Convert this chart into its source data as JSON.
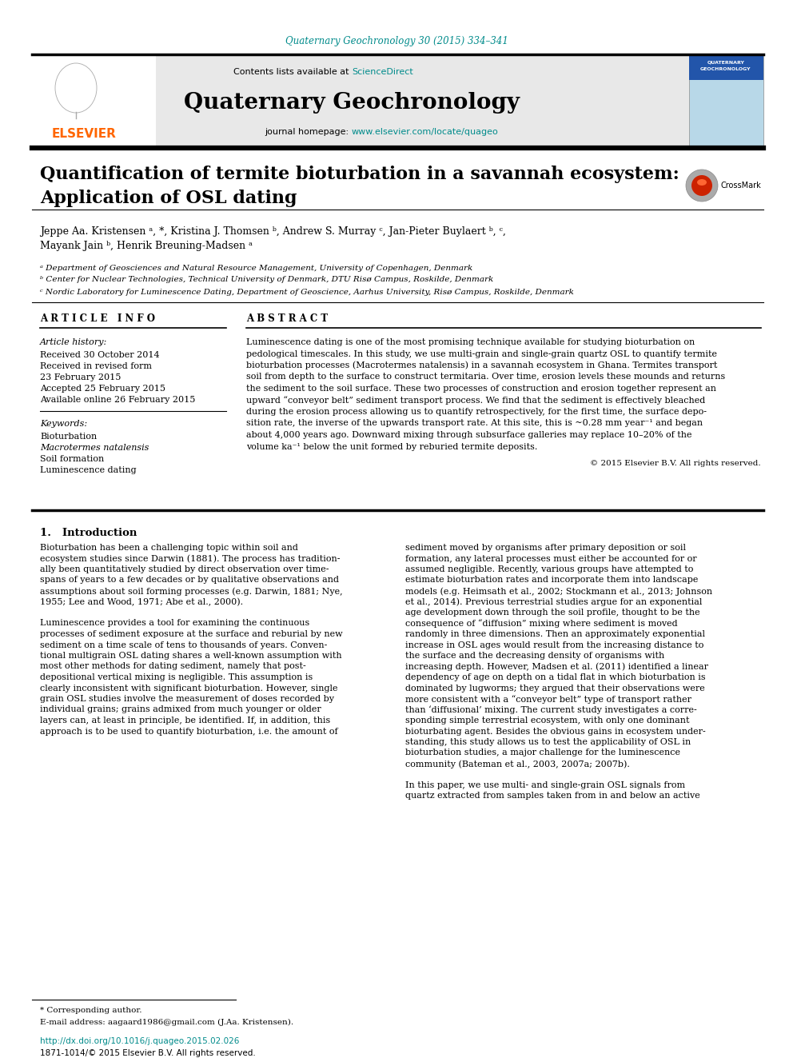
{
  "journal_citation": "Quaternary Geochronology 30 (2015) 334–341",
  "journal_name": "Quaternary Geochronology",
  "contents_text": "Contents lists available at ",
  "sciencedirect": "ScienceDirect",
  "journal_homepage_text": "journal homepage: ",
  "journal_url": "www.elsevier.com/locate/quageo",
  "title_line1": "Quantification of termite bioturbation in a savannah ecosystem:",
  "title_line2": "Application of OSL dating",
  "authors": "Jeppe Aa. Kristensen ᵃ, *, Kristina J. Thomsen ᵇ, Andrew S. Murray ᶜ, Jan-Pieter Buylaert ᵇ, ᶜ,",
  "authors2": "Mayank Jain ᵇ, Henrik Breuning-Madsen ᵃ",
  "affil_a": "ᵃ Department of Geosciences and Natural Resource Management, University of Copenhagen, Denmark",
  "affil_b": "ᵇ Center for Nuclear Technologies, Technical University of Denmark, DTU Risø Campus, Roskilde, Denmark",
  "affil_c": "ᶜ Nordic Laboratory for Luminescence Dating, Department of Geoscience, Aarhus University, Risø Campus, Roskilde, Denmark",
  "article_info_title": "A R T I C L E   I N F O",
  "abstract_title": "A B S T R A C T",
  "article_history_label": "Article history:",
  "received1": "Received 30 October 2014",
  "received2": "Received in revised form",
  "received2b": "23 February 2015",
  "accepted": "Accepted 25 February 2015",
  "available": "Available online 26 February 2015",
  "keywords_label": "Keywords:",
  "keyword1": "Bioturbation",
  "keyword2": "Macrotermes natalensis",
  "keyword3": "Soil formation",
  "keyword4": "Luminescence dating",
  "copyright": "© 2015 Elsevier B.V. All rights reserved.",
  "intro_heading": "1.   Introduction",
  "footnote_star": "* Corresponding author.",
  "footnote_email": "E-mail address: aagaard1986@gmail.com (J.Aa. Kristensen).",
  "doi_text": "http://dx.doi.org/10.1016/j.quageo.2015.02.026",
  "issn_text": "1871-1014/© 2015 Elsevier B.V. All rights reserved.",
  "link_color": "#008B8B",
  "citation_color": "#008B8B",
  "header_bg": "#e8e8e8",
  "elsevier_color": "#FF6600",
  "abstract_lines": [
    "Luminescence dating is one of the most promising technique available for studying bioturbation on",
    "pedological timescales. In this study, we use multi-grain and single-grain quartz OSL to quantify termite",
    "bioturbation processes (Macrotermes natalensis) in a savannah ecosystem in Ghana. Termites transport",
    "soil from depth to the surface to construct termitaria. Over time, erosion levels these mounds and returns",
    "the sediment to the soil surface. These two processes of construction and erosion together represent an",
    "upward “conveyor belt” sediment transport process. We find that the sediment is effectively bleached",
    "during the erosion process allowing us to quantify retrospectively, for the first time, the surface depo-",
    "sition rate, the inverse of the upwards transport rate. At this site, this is ~0.28 mm year⁻¹ and began",
    "about 4,000 years ago. Downward mixing through subsurface galleries may replace 10–20% of the",
    "volume ka⁻¹ below the unit formed by reburied termite deposits."
  ],
  "intro1_lines": [
    "Bioturbation has been a challenging topic within soil and",
    "ecosystem studies since Darwin (1881). The process has tradition-",
    "ally been quantitatively studied by direct observation over time-",
    "spans of years to a few decades or by qualitative observations and",
    "assumptions about soil forming processes (e.g. Darwin, 1881; Nye,",
    "1955; Lee and Wood, 1971; Abe et al., 2000).",
    "",
    "Luminescence provides a tool for examining the continuous",
    "processes of sediment exposure at the surface and reburial by new",
    "sediment on a time scale of tens to thousands of years. Conven-",
    "tional multigrain OSL dating shares a well-known assumption with",
    "most other methods for dating sediment, namely that post-",
    "depositional vertical mixing is negligible. This assumption is",
    "clearly inconsistent with significant bioturbation. However, single",
    "grain OSL studies involve the measurement of doses recorded by",
    "individual grains; grains admixed from much younger or older",
    "layers can, at least in principle, be identified. If, in addition, this",
    "approach is to be used to quantify bioturbation, i.e. the amount of"
  ],
  "intro2_lines": [
    "sediment moved by organisms after primary deposition or soil",
    "formation, any lateral processes must either be accounted for or",
    "assumed negligible. Recently, various groups have attempted to",
    "estimate bioturbation rates and incorporate them into landscape",
    "models (e.g. Heimsath et al., 2002; Stockmann et al., 2013; Johnson",
    "et al., 2014). Previous terrestrial studies argue for an exponential",
    "age development down through the soil profile, thought to be the",
    "consequence of “diffusion” mixing where sediment is moved",
    "randomly in three dimensions. Then an approximately exponential",
    "increase in OSL ages would result from the increasing distance to",
    "the surface and the decreasing density of organisms with",
    "increasing depth. However, Madsen et al. (2011) identified a linear",
    "dependency of age on depth on a tidal flat in which bioturbation is",
    "dominated by lugworms; they argued that their observations were",
    "more consistent with a “conveyor belt” type of transport rather",
    "than ‘diffusional’ mixing. The current study investigates a corre-",
    "sponding simple terrestrial ecosystem, with only one dominant",
    "bioturbating agent. Besides the obvious gains in ecosystem under-",
    "standing, this study allows us to test the applicability of OSL in",
    "bioturbation studies, a major challenge for the luminescence",
    "community (Bateman et al., 2003, 2007a; 2007b).",
    "",
    "In this paper, we use multi- and single-grain OSL signals from",
    "quartz extracted from samples taken from in and below an active"
  ]
}
